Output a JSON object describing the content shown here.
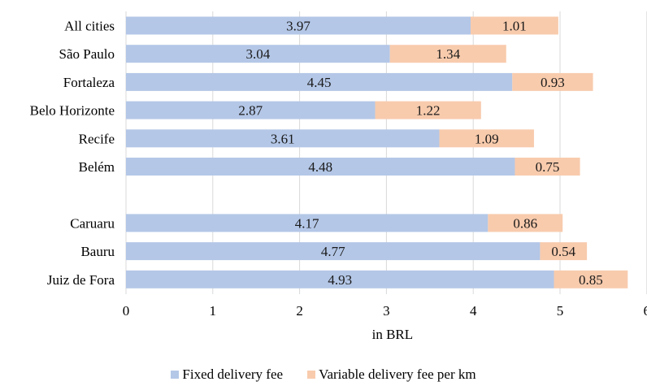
{
  "chart_data": {
    "type": "bar",
    "orientation": "horizontal",
    "stacked": true,
    "categories": [
      "All cities",
      "São Paulo",
      "Fortaleza",
      "Belo Horizonte",
      "Recife",
      "Belém",
      "",
      "Caruaru",
      "Bauru",
      "Juiz de Fora"
    ],
    "series": [
      {
        "name": "Fixed delivery fee",
        "color": "#b4c7e7",
        "values": [
          3.97,
          3.04,
          4.45,
          2.87,
          3.61,
          4.48,
          null,
          4.17,
          4.77,
          4.93
        ]
      },
      {
        "name": "Variable delivery fee per km",
        "color": "#f8cbad",
        "values": [
          1.01,
          1.34,
          0.93,
          1.22,
          1.09,
          0.75,
          null,
          0.86,
          0.54,
          0.85
        ]
      }
    ],
    "value_labels": {
      "fixed": [
        "3.97",
        "3.04",
        "4.45",
        "2.87",
        "3.61",
        "4.48",
        "",
        "4.17",
        "4.77",
        "4.93"
      ],
      "variable": [
        "1.01",
        "1.34",
        "0.93",
        "1.22",
        "1.09",
        "0.75",
        "",
        "0.86",
        "0.54",
        "0.85"
      ]
    },
    "xticks": [
      "0",
      "1",
      "2",
      "3",
      "4",
      "5",
      "6"
    ],
    "xlim": [
      0,
      6
    ],
    "xlabel": "in BRL",
    "grid": true,
    "legend_position": "bottom"
  }
}
